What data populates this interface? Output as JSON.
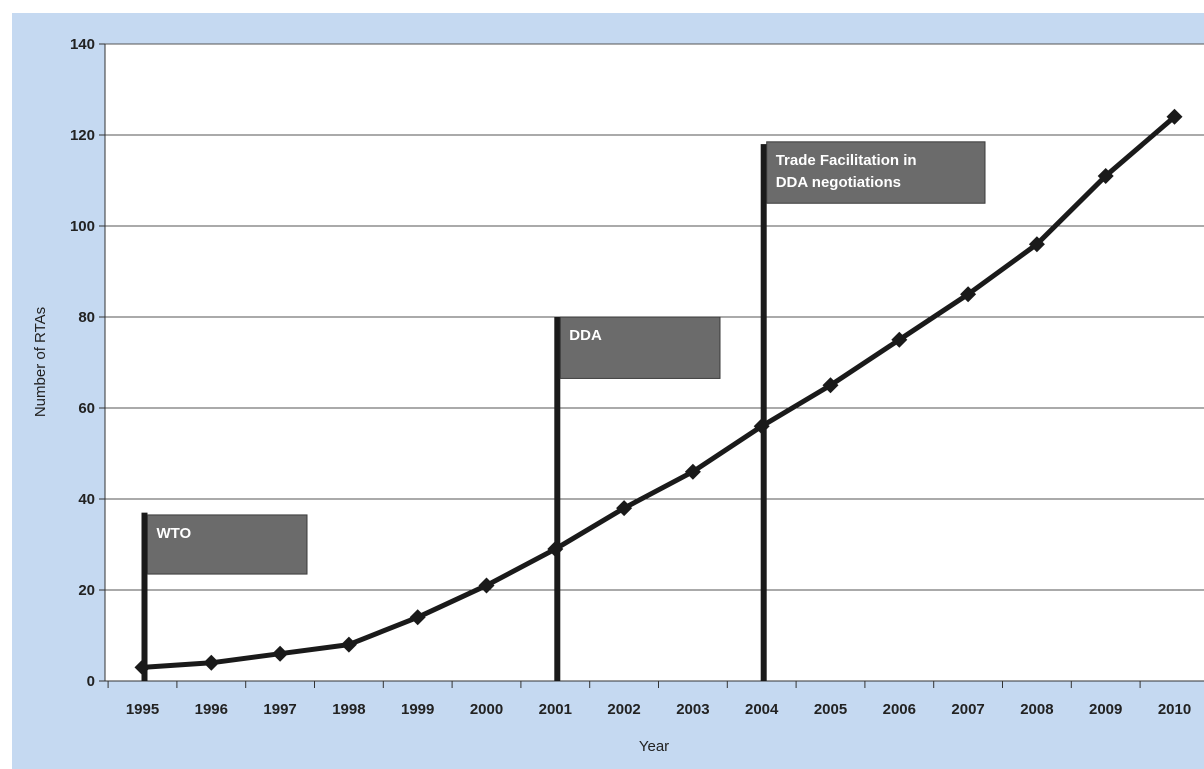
{
  "chart_data": {
    "type": "line",
    "title": "",
    "xlabel": "Year",
    "ylabel": "Number of RTAs",
    "x": [
      "1995",
      "1996",
      "1997",
      "1998",
      "1999",
      "2000",
      "2001",
      "2002",
      "2003",
      "2004",
      "2005",
      "2006",
      "2007",
      "2008",
      "2009",
      "2010"
    ],
    "series": [
      {
        "values": [
          3,
          4,
          6,
          8,
          14,
          21,
          29,
          38,
          46,
          56,
          65,
          75,
          85,
          96,
          111,
          124
        ]
      }
    ],
    "ylim": [
      0,
      140
    ],
    "yticks": [
      0,
      20,
      40,
      60,
      80,
      100,
      120,
      140
    ],
    "grid": true,
    "legend": "none",
    "annotations": [
      {
        "label_lines": [
          "WTO"
        ],
        "year": "1995",
        "pole_top_value": 37,
        "flag_top_value": 36.5,
        "flag_bottom_value": 23.5
      },
      {
        "label_lines": [
          "DDA"
        ],
        "year": "2001",
        "pole_top_value": 80,
        "flag_top_value": 80,
        "flag_bottom_value": 66.5
      },
      {
        "label_lines": [
          "Trade Facilitation  in",
          "DDA negotiations"
        ],
        "year": "2004",
        "pole_top_value": 118,
        "flag_top_value": 118.5,
        "flag_bottom_value": 105
      }
    ],
    "colors": {
      "background": "#c5d9f1",
      "plot_area": "#ffffff",
      "line": "#1a1a1a",
      "flag_fill": "#6b6b6b",
      "pole": "#1a1a1a"
    }
  }
}
